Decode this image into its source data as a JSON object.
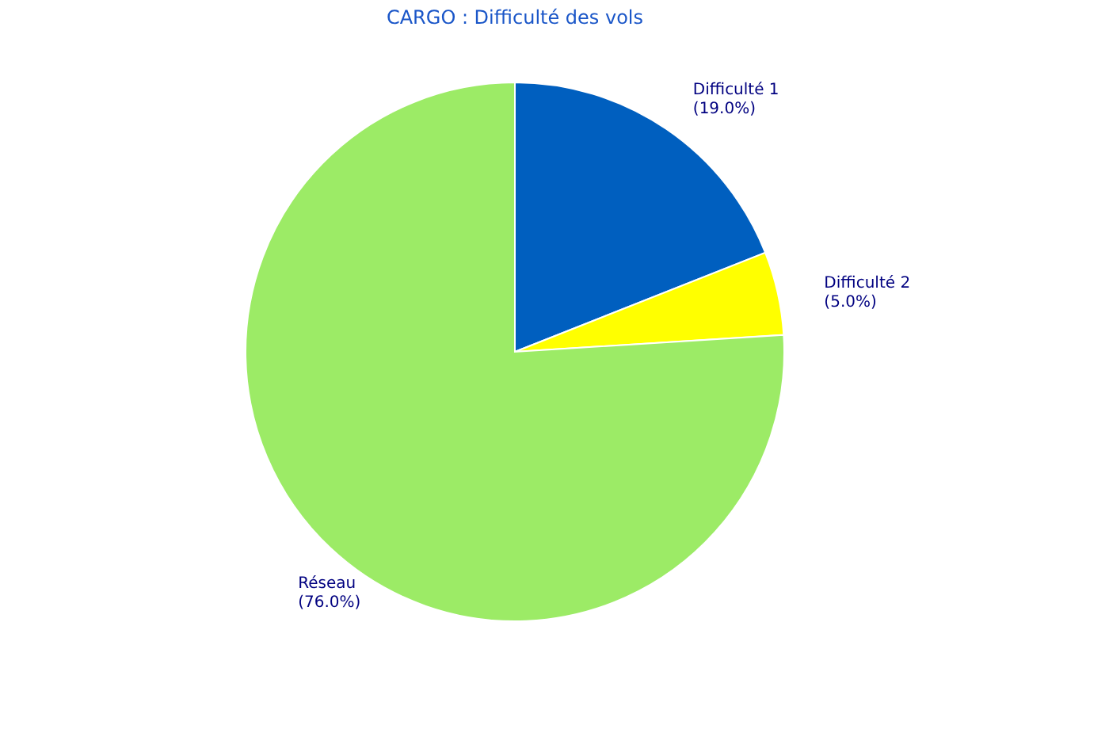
{
  "chart_data": {
    "type": "pie",
    "title": "CARGO : Difficulté des vols",
    "categories": [
      "Difficulté 1",
      "Difficulté 2",
      "Réseau"
    ],
    "values": [
      19,
      5,
      76
    ],
    "colors": [
      "#005fbf",
      "#ffff00",
      "#9ceb66"
    ],
    "value_labels": [
      "(19.0%)",
      "(5.0%)",
      "(76.0%)"
    ],
    "legend": false
  }
}
